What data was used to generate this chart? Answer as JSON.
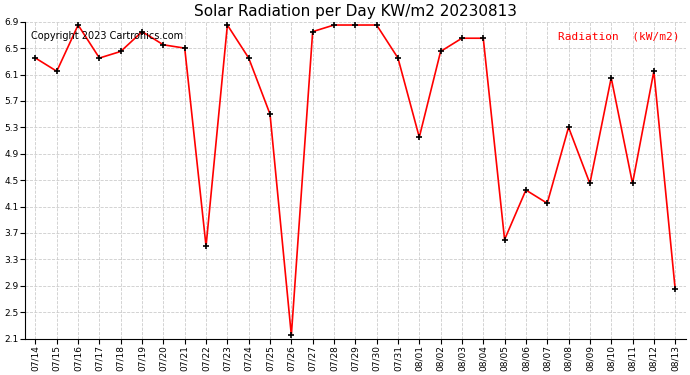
{
  "title": "Solar Radiation per Day KW/m2 20230813",
  "copyright": "Copyright 2023 Cartronics.com",
  "legend_label": "Radiation  (kW/m2)",
  "dates": [
    "07/14",
    "07/15",
    "07/16",
    "07/17",
    "07/18",
    "07/19",
    "07/20",
    "07/21",
    "07/22",
    "07/23",
    "07/24",
    "07/25",
    "07/26",
    "07/27",
    "07/28",
    "07/29",
    "07/30",
    "07/31",
    "08/01",
    "08/02",
    "08/03",
    "08/04",
    "08/05",
    "08/06",
    "08/07",
    "08/08",
    "08/09",
    "08/10",
    "08/11",
    "08/12",
    "08/13"
  ],
  "values": [
    6.35,
    6.15,
    6.85,
    6.35,
    6.45,
    6.75,
    6.55,
    6.5,
    3.5,
    6.85,
    6.35,
    5.5,
    2.15,
    6.75,
    6.85,
    6.85,
    6.85,
    6.35,
    5.15,
    6.45,
    6.65,
    6.65,
    3.6,
    4.35,
    4.15,
    5.3,
    4.45,
    6.05,
    4.45,
    6.15,
    2.85
  ],
  "line_color": "red",
  "marker_color": "black",
  "grid_color": "#cccccc",
  "background_color": "white",
  "ylim": [
    2.1,
    6.9
  ],
  "yticks": [
    2.1,
    2.5,
    2.9,
    3.3,
    3.7,
    4.1,
    4.5,
    4.9,
    5.3,
    5.7,
    6.1,
    6.5,
    6.9
  ],
  "title_fontsize": 11,
  "copyright_fontsize": 7,
  "legend_fontsize": 8,
  "tick_fontsize": 6.5
}
